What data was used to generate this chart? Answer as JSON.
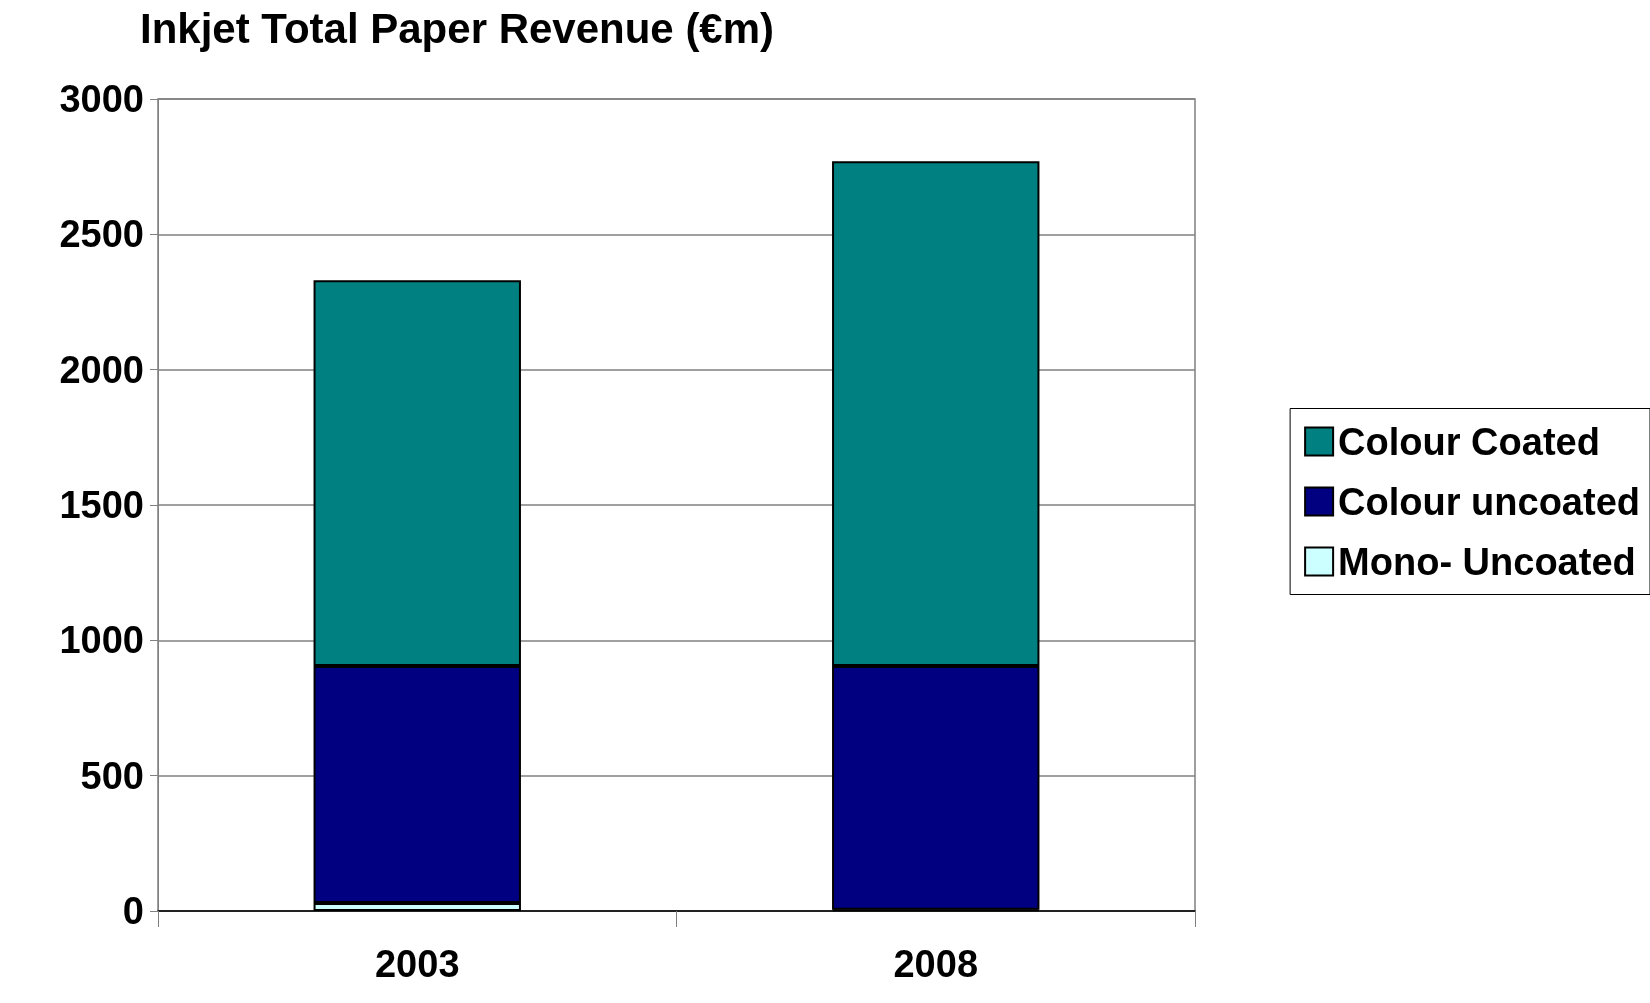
{
  "chart_data": {
    "type": "bar",
    "title": "Inkjet Total Paper Revenue (€m)",
    "categories": [
      "2003",
      "2008"
    ],
    "stacked": true,
    "series": [
      {
        "name": "Mono- Uncoated",
        "color": "#ccffff",
        "values": [
          30,
          5
        ]
      },
      {
        "name": "Colour uncoated",
        "color": "#000080",
        "values": [
          875,
          900
        ]
      },
      {
        "name": "Colour Coated",
        "color": "#008080",
        "values": [
          1425,
          1865
        ]
      }
    ],
    "ylim": [
      0,
      3000
    ],
    "yticks": [
      0,
      500,
      1000,
      1500,
      2000,
      2500,
      3000
    ],
    "grid": "y",
    "legend": "right"
  }
}
